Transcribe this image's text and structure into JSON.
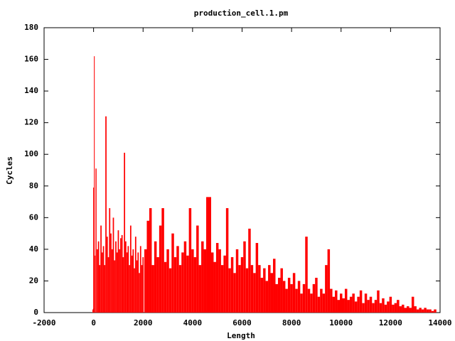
{
  "chart_data": {
    "type": "impulse",
    "title": "production_cell.1.pm",
    "x_label": "Length",
    "y_label": "Cycles",
    "color": "#ff0000",
    "x": [
      -30,
      0,
      30,
      60,
      100,
      150,
      200,
      250,
      300,
      350,
      400,
      450,
      500,
      550,
      600,
      650,
      700,
      750,
      800,
      850,
      900,
      950,
      1000,
      1050,
      1100,
      1150,
      1200,
      1250,
      1300,
      1350,
      1400,
      1450,
      1500,
      1550,
      1600,
      1650,
      1700,
      1750,
      1800,
      1850,
      1900,
      1950,
      2000,
      2100,
      2200,
      2300,
      2400,
      2500,
      2600,
      2700,
      2800,
      2900,
      3000,
      3100,
      3200,
      3300,
      3400,
      3500,
      3600,
      3700,
      3800,
      3900,
      4000,
      4100,
      4200,
      4300,
      4400,
      4500,
      4600,
      4700,
      4800,
      4900,
      5000,
      5100,
      5200,
      5300,
      5400,
      5500,
      5600,
      5700,
      5800,
      5900,
      6000,
      6100,
      6200,
      6300,
      6400,
      6500,
      6600,
      6700,
      6800,
      6900,
      7000,
      7100,
      7200,
      7300,
      7400,
      7500,
      7600,
      7700,
      7800,
      7900,
      8000,
      8100,
      8200,
      8300,
      8400,
      8500,
      8600,
      8700,
      8800,
      8900,
      9000,
      9100,
      9200,
      9300,
      9400,
      9500,
      9600,
      9700,
      9800,
      9900,
      10000,
      10100,
      10200,
      10300,
      10400,
      10500,
      10600,
      10700,
      10800,
      10900,
      11000,
      11100,
      11200,
      11300,
      11400,
      11500,
      11600,
      11700,
      11800,
      11900,
      12000,
      12100,
      12200,
      12300,
      12400,
      12500,
      12600,
      12700,
      12800,
      12900,
      13000,
      13100,
      13200,
      13300,
      13400,
      13500,
      13600,
      13700,
      13800
    ],
    "values": [
      2,
      79,
      162,
      36,
      91,
      40,
      45,
      30,
      55,
      38,
      42,
      30,
      124,
      48,
      35,
      66,
      50,
      40,
      60,
      33,
      45,
      38,
      52,
      40,
      47,
      49,
      35,
      101,
      45,
      38,
      42,
      30,
      55,
      36,
      40,
      28,
      48,
      33,
      38,
      25,
      42,
      30,
      35,
      40,
      58,
      66,
      30,
      45,
      35,
      55,
      66,
      32,
      40,
      28,
      50,
      35,
      42,
      30,
      38,
      45,
      36,
      66,
      40,
      35,
      55,
      30,
      45,
      40,
      73,
      73,
      38,
      32,
      44,
      40,
      30,
      36,
      66,
      28,
      35,
      25,
      40,
      30,
      35,
      45,
      28,
      53,
      30,
      25,
      44,
      30,
      22,
      28,
      20,
      30,
      25,
      34,
      18,
      22,
      28,
      20,
      15,
      22,
      18,
      25,
      15,
      20,
      12,
      18,
      48,
      15,
      12,
      18,
      22,
      10,
      15,
      12,
      30,
      40,
      15,
      10,
      14,
      8,
      12,
      9,
      15,
      8,
      10,
      12,
      7,
      10,
      14,
      6,
      12,
      8,
      10,
      6,
      8,
      14,
      6,
      9,
      5,
      7,
      10,
      5,
      6,
      8,
      4,
      5,
      3,
      4,
      3,
      10,
      4,
      2,
      3,
      2,
      3,
      2,
      2,
      1,
      2
    ],
    "xlim": [
      -2000,
      14000
    ],
    "xticks": [
      -2000,
      0,
      2000,
      4000,
      6000,
      8000,
      10000,
      12000,
      14000
    ],
    "ylim": [
      0,
      180
    ],
    "yticks": [
      0,
      20,
      40,
      60,
      80,
      100,
      120,
      140,
      160,
      180
    ]
  }
}
